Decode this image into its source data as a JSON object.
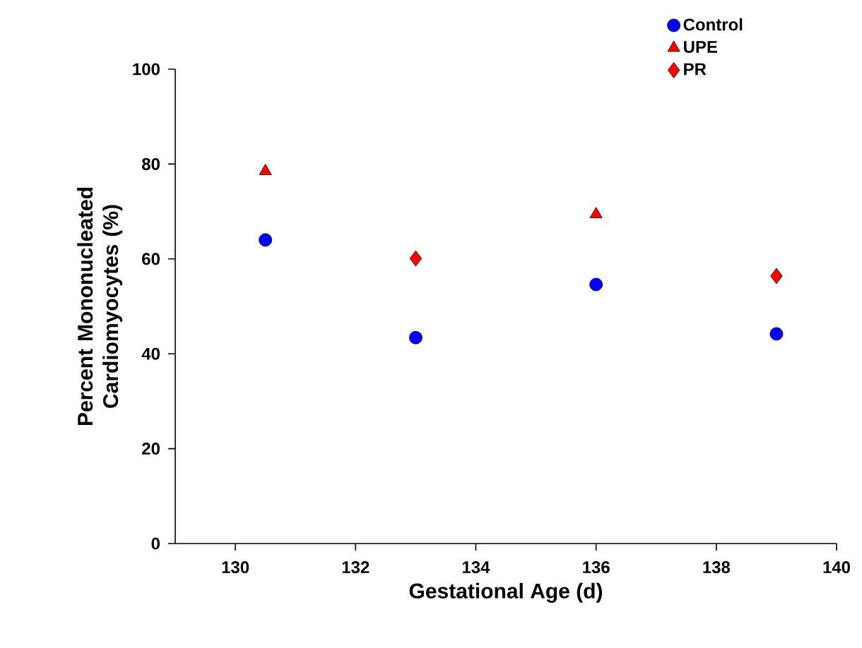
{
  "chart_data": {
    "type": "scatter",
    "xlabel": "Gestational Age (d)",
    "ylabel": "Percent Mononucleated Cardiomyocytes (%)",
    "xlim": [
      129,
      140
    ],
    "xticks": [
      130,
      132,
      134,
      136,
      138,
      140
    ],
    "ylim": [
      0,
      100
    ],
    "yticks": [
      0,
      20,
      40,
      60,
      80,
      100
    ],
    "legend": "top right",
    "grid": false,
    "series": [
      {
        "name": "Control",
        "color": "#0000ff",
        "marker": "circle",
        "x": [
          130.5,
          133,
          136,
          139
        ],
        "values": [
          64,
          43.4,
          54.6,
          44.2
        ]
      },
      {
        "name": "UPE",
        "color": "#ff0000",
        "marker": "triangle",
        "x": [
          130.5,
          136
        ],
        "values": [
          78.5,
          69.4
        ]
      },
      {
        "name": "PR",
        "color": "#ff0000",
        "marker": "diamond",
        "x": [
          133,
          139
        ],
        "values": [
          60.1,
          56.4
        ]
      }
    ]
  }
}
